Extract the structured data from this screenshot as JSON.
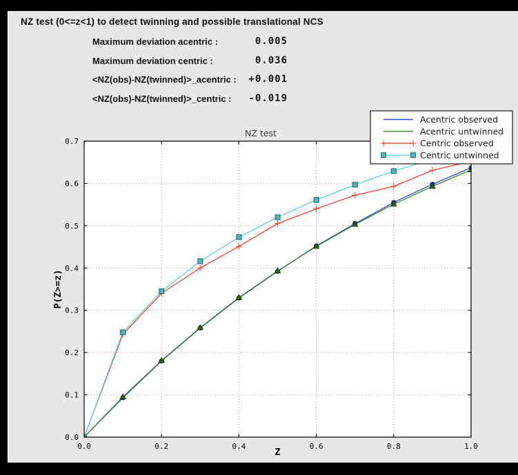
{
  "header": {
    "title": "NZ test (0<=z<1) to detect twinning and possible translational NCS"
  },
  "stats": [
    {
      "label": "Maximum deviation acentric :",
      "value": "0.005"
    },
    {
      "label": "Maximum deviation centric :",
      "value": "0.036"
    },
    {
      "label": "<NZ(obs)-NZ(twinned)>_acentric :",
      "value": "+0.001"
    },
    {
      "label": "<NZ(obs)-NZ(twinned)>_centric :",
      "value": "-0.019"
    }
  ],
  "colors": {
    "canvas_bg": "#010101",
    "panel_bg": "#e7e7e7",
    "plot_bg": "#ffffff",
    "grid": "#b5b5b5",
    "spine": "#000000",
    "chart_title_text": "#3a3a3a",
    "legend_bg": "#ffffff",
    "legend_border": "#1a1a1a",
    "text": "#131313"
  },
  "chart_data": {
    "type": "line",
    "title": "NZ test",
    "xlabel": "Z",
    "ylabel": "P(Z>=z)",
    "xlim": [
      0.0,
      1.0
    ],
    "ylim": [
      0.0,
      0.7
    ],
    "xticks": [
      0.0,
      0.2,
      0.4,
      0.6,
      0.8,
      1.0
    ],
    "yticks": [
      0.0,
      0.1,
      0.2,
      0.3,
      0.4,
      0.5,
      0.6,
      0.7
    ],
    "grid": "dotted",
    "legend_position": "upper-right",
    "x": [
      0.0,
      0.1,
      0.2,
      0.3,
      0.4,
      0.5,
      0.6,
      0.7,
      0.8,
      0.9,
      1.0
    ],
    "series": [
      {
        "name": "Acentric observed",
        "color": "#2742c6",
        "marker": "circle",
        "marker_fill": "#2742c6",
        "marker_edge": "#111e66",
        "values": [
          0.0,
          0.093,
          0.18,
          0.258,
          0.329,
          0.392,
          0.452,
          0.505,
          0.555,
          0.598,
          0.637
        ]
      },
      {
        "name": "Acentric untwinned",
        "color": "#3f7b26",
        "marker": "triangle",
        "marker_fill": "#2f6418",
        "marker_edge": "#163307",
        "values": [
          0.0,
          0.095,
          0.181,
          0.259,
          0.33,
          0.393,
          0.451,
          0.503,
          0.551,
          0.593,
          0.632
        ]
      },
      {
        "name": "Centric observed",
        "color": "#ee3d2d",
        "marker": "plus",
        "marker_fill": "#ee3d2d",
        "marker_edge": "#ee3d2d",
        "values": [
          0.0,
          0.243,
          0.34,
          0.4,
          0.451,
          0.505,
          0.54,
          0.572,
          0.593,
          0.631,
          0.652
        ]
      },
      {
        "name": "Centric untwinned",
        "color": "#5fcdd4",
        "marker": "square",
        "marker_fill": "#57b3bb",
        "marker_edge": "#27757d",
        "values": [
          0.0,
          0.248,
          0.345,
          0.416,
          0.473,
          0.52,
          0.561,
          0.597,
          0.629,
          0.657,
          0.683
        ]
      }
    ]
  }
}
